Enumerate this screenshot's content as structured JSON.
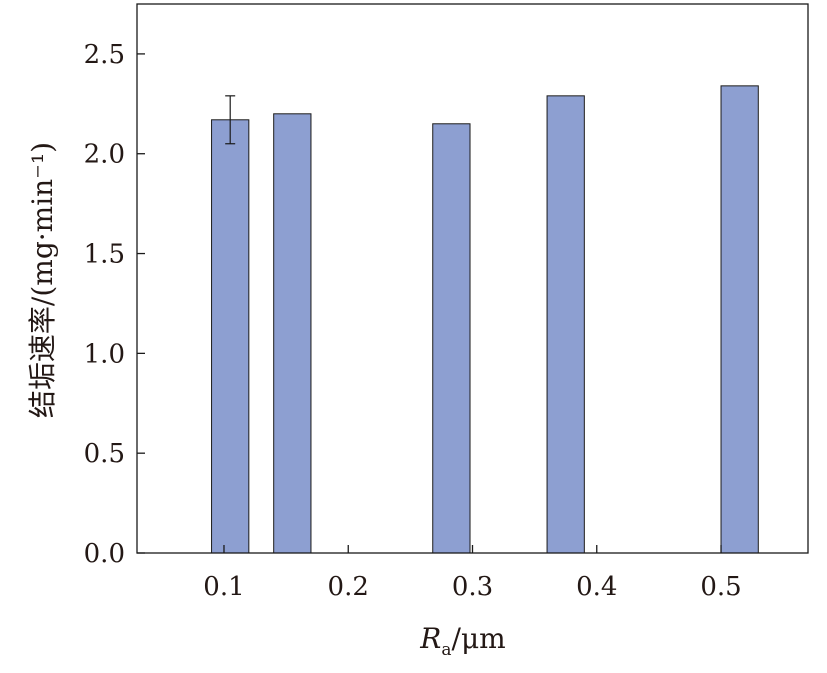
{
  "chart_data": {
    "type": "bar",
    "xlabel_main": "R",
    "xlabel_sub": "a",
    "xlabel_unit": "/μm",
    "ylabel": "结垢速率/(mg·min⁻¹)",
    "xlim": [
      0.03,
      0.57
    ],
    "ylim": [
      0.0,
      2.75
    ],
    "x_ticks": [
      0.1,
      0.2,
      0.3,
      0.4,
      0.5
    ],
    "x_tick_labels": [
      "0.1",
      "0.2",
      "0.3",
      "0.4",
      "0.5"
    ],
    "y_ticks": [
      0.0,
      0.5,
      1.0,
      1.5,
      2.0,
      2.5
    ],
    "y_tick_labels": [
      "0.0",
      "0.5",
      "1.0",
      "1.5",
      "2.0",
      "2.5"
    ],
    "bar_width": 0.03,
    "bars": [
      {
        "x": 0.105,
        "value": 2.17,
        "error": 0.12
      },
      {
        "x": 0.155,
        "value": 2.2
      },
      {
        "x": 0.283,
        "value": 2.15
      },
      {
        "x": 0.375,
        "value": 2.29
      },
      {
        "x": 0.515,
        "value": 2.34
      }
    ],
    "colors": {
      "bar": "#8d9fd1",
      "edge": "#1a1a1a"
    },
    "grid": false,
    "legend": "none"
  }
}
